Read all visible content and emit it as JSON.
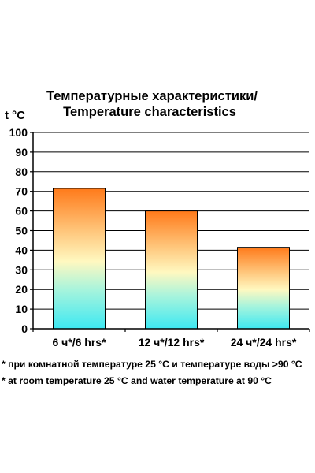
{
  "chart_data": {
    "type": "bar",
    "title_line1": "Температурные характеристики/",
    "title_line2": "Temperature characteristics",
    "ylabel": "t °C",
    "xlabel": "",
    "ylim": [
      0,
      100
    ],
    "yticks": [
      0,
      10,
      20,
      30,
      40,
      50,
      60,
      70,
      80,
      90,
      100
    ],
    "grid": true,
    "categories": [
      "6 ч*/6 hrs*",
      "12 ч*/12 hrs*",
      "24 ч*/24 hrs*"
    ],
    "values": [
      71.5,
      60,
      41.5
    ],
    "bar_gradient_colors": [
      "#ff7a1a",
      "#ffc57a",
      "#fff8c0",
      "#a8f4dc",
      "#3de8f2"
    ]
  },
  "footnotes": [
    "* при комнатной температуре 25 °С и температуре воды >90 °С",
    "* at room temperature 25 °С and water temperature at 90 °С"
  ]
}
